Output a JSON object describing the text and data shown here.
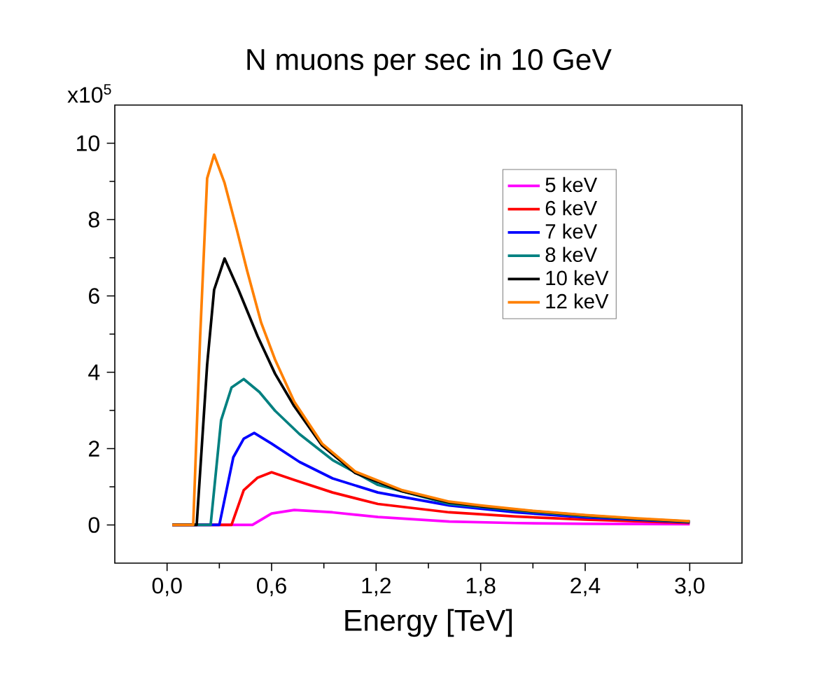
{
  "chart_data": {
    "type": "line",
    "title": "N muons per sec in 10 GeV",
    "xlabel": "Energy [TeV]",
    "ylabel": "x10$^{5}$",
    "xlim": [
      -0.3,
      3.3
    ],
    "ylim": [
      -1,
      11
    ],
    "xticks": [
      {
        "value": 0,
        "label": "0,0"
      },
      {
        "value": 0.6,
        "label": "0,6"
      },
      {
        "value": 1.2,
        "label": "1,2"
      },
      {
        "value": 1.8,
        "label": "1,8"
      },
      {
        "value": 2.4,
        "label": "2,4"
      },
      {
        "value": 3.0,
        "label": "3,0"
      }
    ],
    "yticks": [
      0,
      2,
      4,
      6,
      8,
      10
    ],
    "legend": "top right",
    "grid": false,
    "marker": "none",
    "line_style": "solid",
    "series": [
      {
        "name": "5 keV",
        "color": "#ff00ff",
        "x": [
          0.03,
          0.49,
          0.6,
          0.73,
          0.95,
          1.21,
          1.62,
          2.0,
          2.4,
          3.0
        ],
        "values": [
          0,
          0,
          0.3,
          0.39,
          0.33,
          0.21,
          0.09,
          0.05,
          0.03,
          0.02
        ]
      },
      {
        "name": "6 keV",
        "color": "#ff0000",
        "x": [
          0.03,
          0.37,
          0.44,
          0.52,
          0.6,
          0.73,
          0.95,
          1.21,
          1.62,
          2.0,
          2.4,
          3.0
        ],
        "values": [
          0,
          0,
          0.91,
          1.24,
          1.38,
          1.18,
          0.85,
          0.55,
          0.33,
          0.22,
          0.14,
          0.05
        ]
      },
      {
        "name": "7 keV",
        "color": "#0000ff",
        "x": [
          0.03,
          0.3,
          0.38,
          0.44,
          0.5,
          0.6,
          0.76,
          0.95,
          1.21,
          1.62,
          2.0,
          2.4,
          3.0
        ],
        "values": [
          0,
          0,
          1.77,
          2.26,
          2.41,
          2.13,
          1.65,
          1.22,
          0.85,
          0.51,
          0.33,
          0.2,
          0.07
        ]
      },
      {
        "name": "8 keV",
        "color": "#008080",
        "x": [
          0.03,
          0.25,
          0.31,
          0.37,
          0.44,
          0.53,
          0.62,
          0.76,
          0.95,
          1.21,
          1.62,
          2.0,
          2.4,
          3.0
        ],
        "values": [
          0,
          0,
          2.74,
          3.6,
          3.82,
          3.48,
          2.99,
          2.38,
          1.7,
          1.05,
          0.55,
          0.38,
          0.23,
          0.08
        ]
      },
      {
        "name": "10 keV",
        "color": "#000000",
        "x": [
          0.03,
          0.17,
          0.23,
          0.27,
          0.33,
          0.41,
          0.52,
          0.62,
          0.73,
          0.89,
          1.08,
          1.35,
          1.62,
          1.8,
          2.1,
          2.4,
          2.7,
          3.0
        ],
        "values": [
          0,
          0,
          4.2,
          6.16,
          6.98,
          6.16,
          4.94,
          3.96,
          3.11,
          2.08,
          1.36,
          0.88,
          0.59,
          0.49,
          0.36,
          0.25,
          0.16,
          0.09
        ]
      },
      {
        "name": "12 keV",
        "color": "#ff8000",
        "x": [
          0.03,
          0.15,
          0.19,
          0.23,
          0.27,
          0.33,
          0.4,
          0.46,
          0.54,
          0.62,
          0.73,
          0.89,
          1.08,
          1.35,
          1.62,
          1.8,
          2.1,
          2.4,
          2.7,
          3.0
        ],
        "values": [
          0,
          0,
          4.94,
          9.08,
          9.7,
          8.96,
          7.74,
          6.65,
          5.3,
          4.33,
          3.23,
          2.13,
          1.4,
          0.91,
          0.61,
          0.51,
          0.37,
          0.26,
          0.17,
          0.1
        ]
      }
    ]
  }
}
